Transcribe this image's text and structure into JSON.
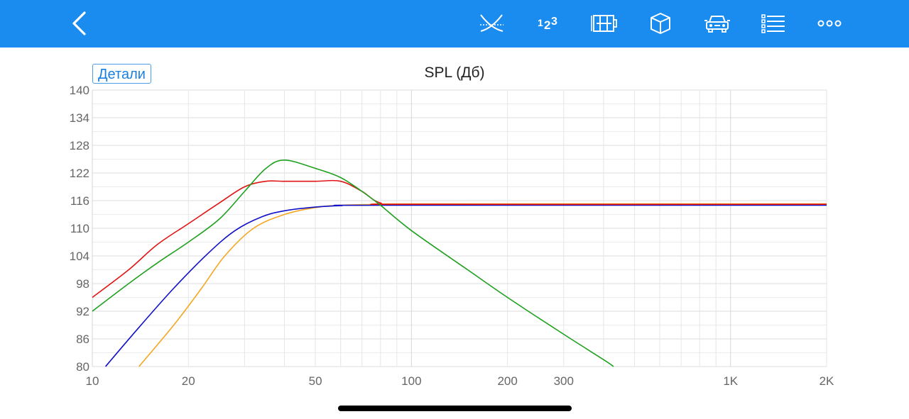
{
  "header": {
    "background": "#1a8cf0",
    "icons": [
      "back-icon",
      "crossover-icon",
      "numbering-icon",
      "enclosure-icon",
      "box-icon",
      "car-icon",
      "list-icon",
      "more-icon"
    ]
  },
  "details_label": "Детали",
  "chart_data": {
    "type": "line",
    "title": "SPL (Дб)",
    "xscale": "log",
    "xlim": [
      10,
      2000
    ],
    "ylim": [
      80,
      140
    ],
    "yticks": [
      80,
      86,
      92,
      98,
      104,
      110,
      116,
      122,
      128,
      134,
      140
    ],
    "xticks": [
      {
        "value": 10,
        "label": "10"
      },
      {
        "value": 20,
        "label": "20"
      },
      {
        "value": 50,
        "label": "50"
      },
      {
        "value": 100,
        "label": "100"
      },
      {
        "value": 200,
        "label": "200"
      },
      {
        "value": 300,
        "label": "300"
      },
      {
        "value": 1000,
        "label": "1K"
      },
      {
        "value": 2000,
        "label": "2K"
      }
    ],
    "grid": true,
    "series": [
      {
        "color": "#f5a623",
        "points": [
          [
            14,
            80
          ],
          [
            18,
            89
          ],
          [
            22,
            97
          ],
          [
            26,
            104
          ],
          [
            32,
            110
          ],
          [
            40,
            113
          ],
          [
            50,
            114.5
          ],
          [
            60,
            115
          ],
          [
            80,
            115.2
          ],
          [
            100,
            115.3
          ],
          [
            2000,
            115.3
          ]
        ]
      },
      {
        "color": "#1010c8",
        "points": [
          [
            11,
            80
          ],
          [
            14,
            88.5
          ],
          [
            18,
            97
          ],
          [
            23,
            104.5
          ],
          [
            28,
            109.5
          ],
          [
            34,
            112.5
          ],
          [
            40,
            113.8
          ],
          [
            50,
            114.6
          ],
          [
            60,
            114.9
          ],
          [
            80,
            115
          ],
          [
            2000,
            115
          ]
        ]
      },
      {
        "color": "#e01414",
        "points": [
          [
            10,
            95
          ],
          [
            13,
            101
          ],
          [
            16,
            106.5
          ],
          [
            20,
            111
          ],
          [
            25,
            115.5
          ],
          [
            30,
            119
          ],
          [
            35,
            120.2
          ],
          [
            40,
            120.2
          ],
          [
            50,
            120.2
          ],
          [
            60,
            120.2
          ],
          [
            70,
            118
          ],
          [
            80,
            115.5
          ],
          [
            100,
            115.2
          ],
          [
            2000,
            115.2
          ]
        ]
      },
      {
        "color": "#1ea01e",
        "points": [
          [
            10,
            92
          ],
          [
            13,
            98
          ],
          [
            16,
            102.5
          ],
          [
            20,
            107
          ],
          [
            25,
            112
          ],
          [
            30,
            118
          ],
          [
            35,
            123
          ],
          [
            40,
            124.8
          ],
          [
            50,
            123
          ],
          [
            60,
            121
          ],
          [
            70,
            118
          ],
          [
            80,
            115
          ],
          [
            100,
            109.5
          ],
          [
            150,
            101
          ],
          [
            200,
            95
          ],
          [
            300,
            87
          ],
          [
            400,
            81.5
          ],
          [
            430,
            80
          ]
        ]
      }
    ]
  }
}
